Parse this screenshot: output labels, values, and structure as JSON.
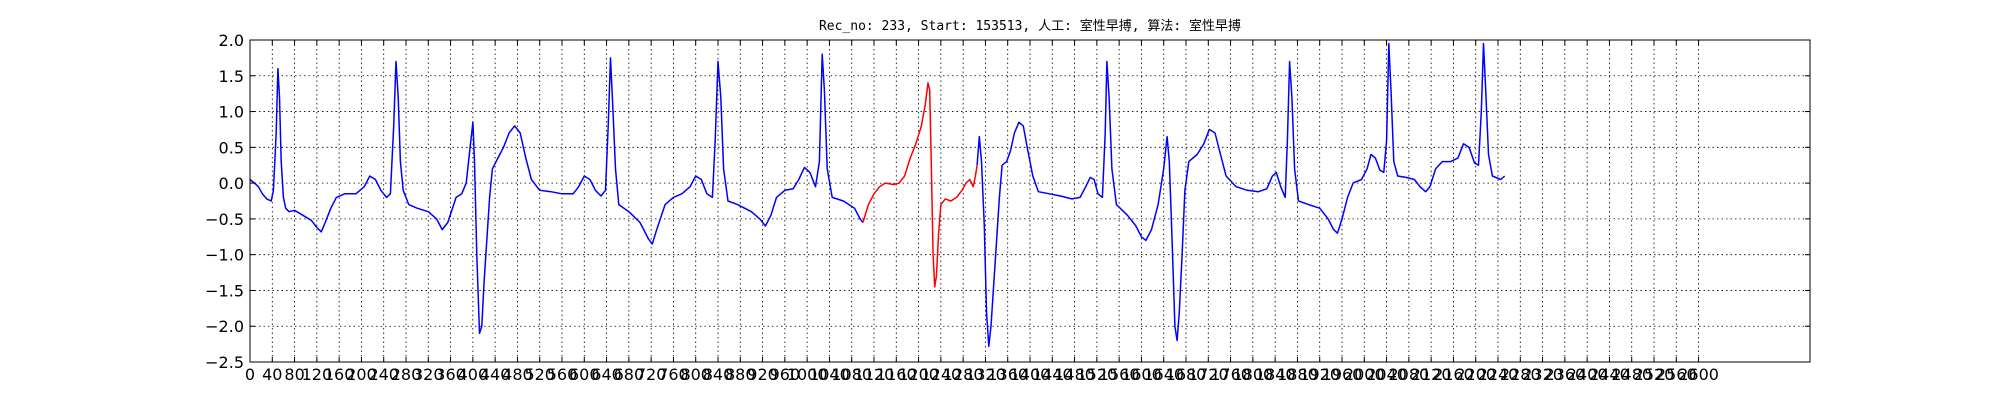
{
  "chart_data": {
    "type": "line",
    "title": "Rec_no: 233, Start: 153513, 人工: 室性早搏, 算法: 室性早搏",
    "xlabel": "",
    "ylabel": "",
    "xlim": [
      0,
      2800
    ],
    "ylim": [
      -2.5,
      2.0
    ],
    "grid": true,
    "x_ticks": [
      0,
      40,
      80,
      120,
      160,
      200,
      240,
      280,
      320,
      360,
      400,
      440,
      480,
      520,
      560,
      600,
      640,
      680,
      720,
      760,
      800,
      840,
      880,
      920,
      960,
      1000,
      1040,
      1080,
      1120,
      1160,
      1200,
      1240,
      1280,
      1320,
      1360,
      1400,
      1440,
      1480,
      1520,
      1560,
      1600,
      1640,
      1680,
      1720,
      1760,
      1800,
      1840,
      1880,
      1920,
      1960,
      2000,
      2040,
      2080,
      2120,
      2160,
      2200,
      2240,
      2280,
      2320,
      2360,
      2400,
      2440,
      2480,
      2520,
      2560,
      2600
    ],
    "y_ticks": [
      2.0,
      1.5,
      1.0,
      0.5,
      0.0,
      -0.5,
      -1.0,
      -1.5,
      -2.0,
      -2.5
    ],
    "y_tick_labels": [
      "2.0",
      "1.5",
      "1.0",
      "0.5",
      "0.0",
      "−0.5",
      "−1.0",
      "−1.5",
      "−2.0",
      "−2.5"
    ],
    "series": [
      {
        "color": "#0000ff",
        "segments": [
          [
            [
              0,
              0.05
            ],
            [
              8,
              0.0
            ],
            [
              15,
              -0.05
            ],
            [
              22,
              -0.15
            ],
            [
              30,
              -0.22
            ],
            [
              38,
              -0.25
            ],
            [
              42,
              -0.1
            ],
            [
              47,
              0.7
            ],
            [
              50,
              1.6
            ],
            [
              53,
              1.2
            ],
            [
              56,
              0.3
            ],
            [
              60,
              -0.2
            ],
            [
              64,
              -0.35
            ],
            [
              70,
              -0.4
            ],
            [
              80,
              -0.38
            ],
            [
              95,
              -0.45
            ],
            [
              110,
              -0.52
            ],
            [
              120,
              -0.62
            ],
            [
              128,
              -0.68
            ],
            [
              135,
              -0.55
            ],
            [
              145,
              -0.35
            ],
            [
              155,
              -0.2
            ],
            [
              170,
              -0.15
            ],
            [
              190,
              -0.15
            ],
            [
              205,
              -0.05
            ],
            [
              215,
              0.1
            ],
            [
              225,
              0.05
            ],
            [
              235,
              -0.1
            ],
            [
              245,
              -0.2
            ],
            [
              252,
              -0.15
            ],
            [
              258,
              0.8
            ],
            [
              262,
              1.7
            ],
            [
              266,
              1.2
            ],
            [
              270,
              0.3
            ],
            [
              275,
              -0.1
            ],
            [
              285,
              -0.3
            ],
            [
              300,
              -0.35
            ],
            [
              320,
              -0.4
            ],
            [
              335,
              -0.5
            ],
            [
              345,
              -0.65
            ],
            [
              355,
              -0.55
            ],
            [
              370,
              -0.2
            ],
            [
              380,
              -0.15
            ],
            [
              388,
              0.0
            ],
            [
              395,
              0.5
            ],
            [
              400,
              0.85
            ],
            [
              403,
              0.3
            ],
            [
              407,
              -1.0
            ],
            [
              412,
              -2.1
            ],
            [
              416,
              -2.0
            ],
            [
              420,
              -1.4
            ],
            [
              425,
              -0.8
            ],
            [
              430,
              -0.2
            ],
            [
              435,
              0.2
            ],
            [
              445,
              0.35
            ],
            [
              455,
              0.5
            ],
            [
              465,
              0.7
            ],
            [
              475,
              0.8
            ],
            [
              485,
              0.7
            ],
            [
              495,
              0.35
            ],
            [
              505,
              0.05
            ],
            [
              520,
              -0.1
            ],
            [
              540,
              -0.12
            ],
            [
              560,
              -0.15
            ],
            [
              580,
              -0.15
            ],
            [
              590,
              -0.05
            ],
            [
              600,
              0.1
            ],
            [
              610,
              0.05
            ],
            [
              620,
              -0.1
            ],
            [
              630,
              -0.18
            ],
            [
              638,
              -0.1
            ],
            [
              643,
              0.8
            ],
            [
              647,
              1.75
            ],
            [
              651,
              1.1
            ],
            [
              656,
              0.2
            ],
            [
              662,
              -0.3
            ],
            [
              680,
              -0.4
            ],
            [
              700,
              -0.55
            ],
            [
              715,
              -0.78
            ],
            [
              722,
              -0.85
            ],
            [
              730,
              -0.65
            ],
            [
              745,
              -0.3
            ],
            [
              760,
              -0.2
            ],
            [
              775,
              -0.15
            ],
            [
              790,
              -0.05
            ],
            [
              800,
              0.1
            ],
            [
              810,
              0.05
            ],
            [
              820,
              -0.15
            ],
            [
              830,
              -0.2
            ],
            [
              835,
              0.6
            ],
            [
              840,
              1.7
            ],
            [
              845,
              1.2
            ],
            [
              850,
              0.2
            ],
            [
              858,
              -0.25
            ],
            [
              875,
              -0.3
            ],
            [
              900,
              -0.4
            ],
            [
              915,
              -0.5
            ],
            [
              925,
              -0.6
            ],
            [
              935,
              -0.45
            ],
            [
              945,
              -0.2
            ],
            [
              960,
              -0.1
            ],
            [
              975,
              -0.08
            ],
            [
              985,
              0.05
            ],
            [
              995,
              0.22
            ],
            [
              1005,
              0.15
            ],
            [
              1015,
              -0.05
            ],
            [
              1022,
              0.3
            ],
            [
              1027,
              1.8
            ],
            [
              1031,
              1.3
            ],
            [
              1036,
              0.2
            ],
            [
              1045,
              -0.2
            ],
            [
              1065,
              -0.25
            ],
            [
              1085,
              -0.35
            ],
            [
              1095,
              -0.5
            ],
            [
              1100,
              -0.55
            ]
          ],
          [
            [
              1305,
              0.25
            ],
            [
              1309,
              0.65
            ],
            [
              1313,
              0.3
            ],
            [
              1318,
              -0.6
            ],
            [
              1322,
              -1.8
            ],
            [
              1326,
              -2.28
            ],
            [
              1330,
              -2.0
            ],
            [
              1335,
              -1.4
            ],
            [
              1340,
              -0.8
            ],
            [
              1345,
              -0.2
            ],
            [
              1350,
              0.25
            ],
            [
              1358,
              0.3
            ],
            [
              1365,
              0.45
            ],
            [
              1372,
              0.7
            ],
            [
              1380,
              0.85
            ],
            [
              1388,
              0.8
            ],
            [
              1395,
              0.5
            ],
            [
              1405,
              0.1
            ],
            [
              1415,
              -0.12
            ],
            [
              1435,
              -0.15
            ],
            [
              1455,
              -0.18
            ],
            [
              1475,
              -0.22
            ],
            [
              1490,
              -0.2
            ],
            [
              1500,
              -0.05
            ],
            [
              1508,
              0.08
            ],
            [
              1515,
              0.05
            ],
            [
              1522,
              -0.15
            ],
            [
              1530,
              -0.2
            ],
            [
              1535,
              0.7
            ],
            [
              1538,
              1.7
            ],
            [
              1542,
              1.2
            ],
            [
              1547,
              0.2
            ],
            [
              1555,
              -0.3
            ],
            [
              1575,
              -0.45
            ],
            [
              1590,
              -0.6
            ],
            [
              1600,
              -0.75
            ],
            [
              1608,
              -0.8
            ],
            [
              1618,
              -0.65
            ],
            [
              1630,
              -0.3
            ],
            [
              1640,
              0.2
            ],
            [
              1646,
              0.65
            ],
            [
              1650,
              0.3
            ],
            [
              1655,
              -0.8
            ],
            [
              1660,
              -2.0
            ],
            [
              1664,
              -2.2
            ],
            [
              1668,
              -1.8
            ],
            [
              1673,
              -1.0
            ],
            [
              1678,
              -0.1
            ],
            [
              1685,
              0.3
            ],
            [
              1700,
              0.4
            ],
            [
              1712,
              0.55
            ],
            [
              1722,
              0.75
            ],
            [
              1732,
              0.7
            ],
            [
              1742,
              0.4
            ],
            [
              1752,
              0.1
            ],
            [
              1770,
              -0.05
            ],
            [
              1790,
              -0.1
            ],
            [
              1810,
              -0.12
            ],
            [
              1825,
              -0.08
            ],
            [
              1835,
              0.1
            ],
            [
              1842,
              0.15
            ],
            [
              1850,
              -0.05
            ],
            [
              1858,
              -0.2
            ],
            [
              1862,
              0.6
            ],
            [
              1866,
              1.7
            ],
            [
              1870,
              1.2
            ],
            [
              1875,
              0.2
            ],
            [
              1882,
              -0.25
            ],
            [
              1900,
              -0.3
            ],
            [
              1920,
              -0.35
            ],
            [
              1935,
              -0.5
            ],
            [
              1945,
              -0.65
            ],
            [
              1952,
              -0.7
            ],
            [
              1960,
              -0.5
            ],
            [
              1970,
              -0.2
            ],
            [
              1980,
              0.0
            ],
            [
              1995,
              0.05
            ],
            [
              2005,
              0.2
            ],
            [
              2012,
              0.4
            ],
            [
              2020,
              0.35
            ],
            [
              2028,
              0.18
            ],
            [
              2035,
              0.15
            ],
            [
              2040,
              0.6
            ],
            [
              2044,
              1.95
            ],
            [
              2048,
              1.3
            ],
            [
              2053,
              0.3
            ],
            [
              2060,
              0.1
            ],
            [
              2075,
              0.08
            ],
            [
              2090,
              0.05
            ],
            [
              2100,
              -0.05
            ],
            [
              2110,
              -0.12
            ],
            [
              2118,
              -0.05
            ],
            [
              2128,
              0.2
            ],
            [
              2140,
              0.3
            ],
            [
              2155,
              0.3
            ],
            [
              2168,
              0.35
            ],
            [
              2178,
              0.55
            ],
            [
              2188,
              0.5
            ],
            [
              2198,
              0.28
            ],
            [
              2205,
              0.25
            ],
            [
              2210,
              1.0
            ],
            [
              2214,
              1.95
            ],
            [
              2218,
              1.3
            ],
            [
              2223,
              0.4
            ],
            [
              2230,
              0.1
            ],
            [
              2245,
              0.05
            ],
            [
              2252,
              0.1
            ]
          ]
        ]
      },
      {
        "color": "#ff0000",
        "segments": [
          [
            [
              1100,
              -0.55
            ],
            [
              1110,
              -0.3
            ],
            [
              1120,
              -0.15
            ],
            [
              1130,
              -0.05
            ],
            [
              1140,
              0.0
            ],
            [
              1155,
              -0.02
            ],
            [
              1165,
              0.0
            ],
            [
              1175,
              0.1
            ],
            [
              1185,
              0.35
            ],
            [
              1195,
              0.55
            ],
            [
              1205,
              0.8
            ],
            [
              1212,
              1.1
            ],
            [
              1217,
              1.4
            ],
            [
              1220,
              1.3
            ],
            [
              1223,
              0.2
            ],
            [
              1226,
              -1.0
            ],
            [
              1229,
              -1.45
            ],
            [
              1232,
              -1.3
            ],
            [
              1236,
              -0.7
            ],
            [
              1240,
              -0.3
            ],
            [
              1248,
              -0.22
            ],
            [
              1258,
              -0.25
            ],
            [
              1268,
              -0.2
            ],
            [
              1278,
              -0.1
            ],
            [
              1285,
              0.0
            ],
            [
              1292,
              0.05
            ],
            [
              1298,
              -0.05
            ],
            [
              1302,
              0.1
            ],
            [
              1305,
              0.25
            ]
          ]
        ]
      }
    ]
  }
}
